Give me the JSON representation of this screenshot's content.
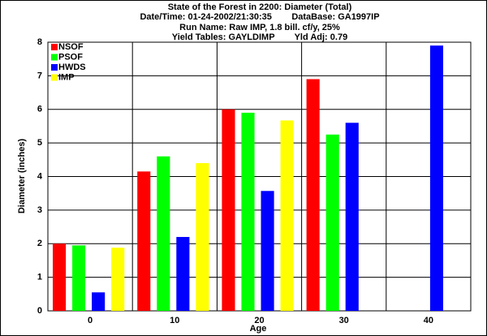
{
  "chart_data": {
    "type": "bar",
    "title": "State of the Forest in 2200: Diameter (Total)",
    "subtitle": [
      "Date/Time: 01-24-2002/21:30:35        DataBase: GA1997IP",
      "Run Name: Raw IMP, 1.8 bill. cf/y, 25%",
      "Yield Tables: GAYLDIMP        Yld Adj: 0.79"
    ],
    "x_label": "Age",
    "y_label": "Diameter (inches)",
    "categories": [
      "0",
      "10",
      "20",
      "30",
      "40"
    ],
    "series": [
      {
        "name": "NSOF",
        "color": "#ff0000",
        "values": [
          2.0,
          4.15,
          6.0,
          6.9,
          null
        ]
      },
      {
        "name": "PSOF",
        "color": "#00ff00",
        "values": [
          1.95,
          4.6,
          5.9,
          5.25,
          null
        ]
      },
      {
        "name": "HWDS",
        "color": "#0000ff",
        "values": [
          0.55,
          2.2,
          3.57,
          5.6,
          7.9
        ]
      },
      {
        "name": "IMP",
        "color": "#ffff00",
        "values": [
          1.88,
          4.4,
          5.67,
          null,
          null
        ]
      }
    ],
    "ylim": [
      0,
      8
    ],
    "yticks": [
      0,
      1,
      2,
      3,
      4,
      5,
      6,
      7,
      8
    ],
    "grid": true,
    "legend": "top-left"
  }
}
